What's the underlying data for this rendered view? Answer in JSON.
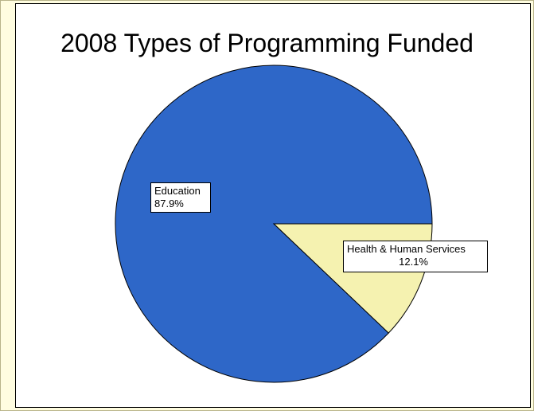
{
  "chart_data": {
    "type": "pie",
    "title": "2008 Types of Programming Funded",
    "categories": [
      "Education",
      "Health & Human Services"
    ],
    "values": [
      87.9,
      12.1
    ],
    "percent_labels": [
      "87.9%",
      "12.1%"
    ],
    "colors": [
      "#2e67c8",
      "#f5f2b0"
    ],
    "legend": "none"
  }
}
